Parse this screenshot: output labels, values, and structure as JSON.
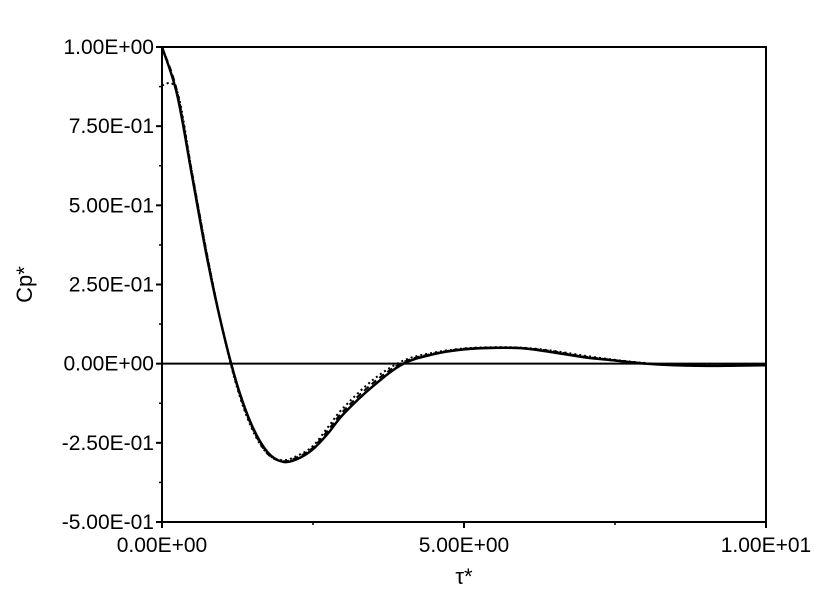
{
  "chart_data": {
    "type": "line",
    "xlabel": "τ*",
    "ylabel": "Cp*",
    "xlim": [
      0,
      10
    ],
    "ylim": [
      -0.5,
      1.0
    ],
    "x_ticks": [
      {
        "value": 0,
        "label": "0.00E+00"
      },
      {
        "value": 5,
        "label": "5.00E+00"
      },
      {
        "value": 10,
        "label": "1.00E+01"
      }
    ],
    "y_ticks": [
      {
        "value": 1.0,
        "label": "1.00E+00"
      },
      {
        "value": 0.75,
        "label": "7.50E-01"
      },
      {
        "value": 0.5,
        "label": "5.00E-01"
      },
      {
        "value": 0.25,
        "label": "2.50E-01"
      },
      {
        "value": 0.0,
        "label": "0.00E+00"
      },
      {
        "value": -0.25,
        "label": "-2.50E-01"
      },
      {
        "value": -0.5,
        "label": "-5.00E-01"
      }
    ],
    "grid": false,
    "legend": "none",
    "series": [
      {
        "style": "solid",
        "color": "#000000",
        "x": [
          0,
          0.25,
          0.5,
          0.75,
          1.0,
          1.25,
          1.5,
          1.75,
          2.0,
          2.25,
          2.5,
          2.75,
          3.0,
          3.5,
          4.0,
          4.5,
          5.0,
          5.5,
          6.0,
          6.5,
          7.0,
          7.5,
          8.0,
          8.5,
          9.0,
          9.5,
          10.0
        ],
        "y": [
          1.0,
          0.85,
          0.59,
          0.33,
          0.11,
          -0.07,
          -0.2,
          -0.28,
          -0.31,
          -0.3,
          -0.27,
          -0.22,
          -0.16,
          -0.07,
          0.0,
          0.03,
          0.045,
          0.05,
          0.048,
          0.035,
          0.02,
          0.01,
          0.0,
          -0.005,
          -0.007,
          -0.006,
          -0.005
        ]
      },
      {
        "style": "dotted",
        "color": "#000000",
        "x": [
          0,
          0.25,
          0.5,
          0.75,
          1.0,
          1.25,
          1.5,
          1.75,
          2.0,
          2.25,
          2.5,
          2.75,
          3.0,
          3.5,
          4.0,
          4.5,
          5.0,
          5.5,
          6.0,
          6.5,
          7.0,
          7.5,
          8.0,
          8.5,
          9.0,
          9.5,
          10.0
        ],
        "y": [
          0.88,
          0.86,
          0.6,
          0.34,
          0.11,
          -0.08,
          -0.21,
          -0.285,
          -0.305,
          -0.29,
          -0.26,
          -0.2,
          -0.14,
          -0.05,
          0.01,
          0.035,
          0.048,
          0.052,
          0.05,
          0.04,
          0.025,
          0.012,
          0.002,
          -0.004,
          -0.006,
          -0.006,
          -0.005
        ]
      },
      {
        "style": "dashed",
        "color": "#000000",
        "x": [
          0,
          0.25,
          0.5,
          0.75,
          1.0,
          1.25,
          1.5,
          1.75,
          2.0,
          2.25,
          2.5,
          2.75,
          3.0,
          3.5,
          4.0,
          4.5,
          5.0,
          5.5,
          6.0,
          6.5,
          7.0,
          7.5,
          8.0,
          8.5,
          9.0,
          9.5,
          10.0
        ],
        "y": [
          1.0,
          0.86,
          0.6,
          0.34,
          0.11,
          -0.075,
          -0.205,
          -0.285,
          -0.308,
          -0.295,
          -0.265,
          -0.21,
          -0.15,
          -0.06,
          0.005,
          0.032,
          0.047,
          0.051,
          0.049,
          0.038,
          0.022,
          0.011,
          0.001,
          -0.005,
          -0.007,
          -0.006,
          -0.005
        ]
      }
    ]
  }
}
